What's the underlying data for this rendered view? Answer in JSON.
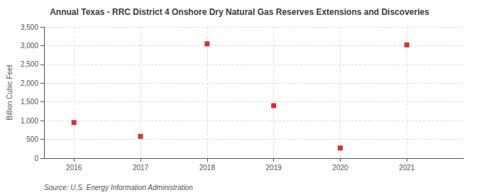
{
  "chart_data": {
    "type": "scatter",
    "title": "Annual Texas - RRC District 4 Onshore Dry Natural Gas Reserves Extensions and Discoveries",
    "ylabel": "Billion Cubic Feet",
    "source": "Source: U.S. Energy Information Administration",
    "x": [
      2016,
      2017,
      2018,
      2019,
      2020,
      2021
    ],
    "values": [
      950,
      580,
      3050,
      1400,
      270,
      3020
    ],
    "color": "#cc0000",
    "marker": "square",
    "xlim": [
      2015.55,
      2021.85
    ],
    "xticks": [
      2016,
      2017,
      2018,
      2019,
      2020,
      2021
    ],
    "ylim": [
      0,
      3500
    ],
    "yticks": [
      0,
      500,
      {
        "value": 1000,
        "label": "1,000"
      },
      {
        "value": 1500,
        "label": "1,500"
      },
      {
        "value": 2000,
        "label": "2,000"
      },
      {
        "value": 2500,
        "label": "2,500"
      },
      {
        "value": 3000,
        "label": "3,000"
      },
      {
        "value": 3500,
        "label": "3,500"
      }
    ],
    "grid": true
  }
}
